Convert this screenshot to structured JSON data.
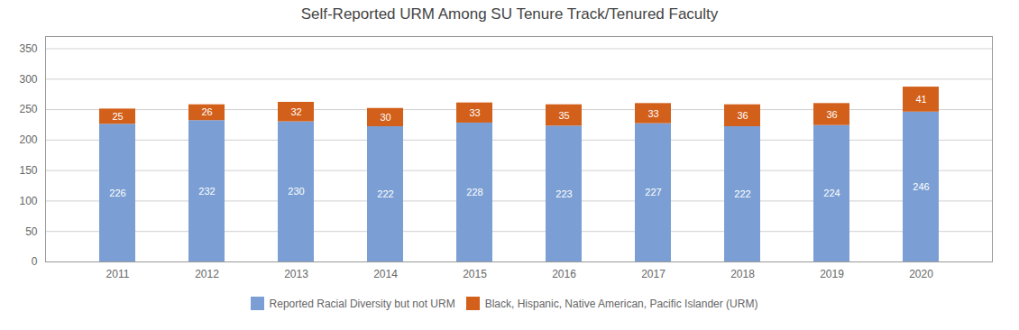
{
  "chart_data": {
    "type": "bar",
    "title": "Self-Reported URM Among SU Tenure Track/Tenured Faculty",
    "categories": [
      "2011",
      "2012",
      "2013",
      "2014",
      "2015",
      "2016",
      "2017",
      "2018",
      "2019",
      "2020"
    ],
    "series": [
      {
        "name": "Reported Racial Diversity but not URM",
        "color": "#7B9FD4",
        "values": [
          226,
          232,
          230,
          222,
          228,
          223,
          227,
          222,
          224,
          246
        ]
      },
      {
        "name": "Black, Hispanic, Native American, Pacific Islander (URM)",
        "color": "#D2601A",
        "values": [
          25,
          26,
          32,
          30,
          33,
          35,
          33,
          36,
          36,
          41
        ]
      }
    ],
    "stacked": true,
    "data_labels": true,
    "ylim": [
      0,
      370
    ],
    "yticks": [
      0,
      50,
      100,
      150,
      200,
      250,
      300,
      350
    ],
    "grid": true,
    "legend": "bottom"
  }
}
